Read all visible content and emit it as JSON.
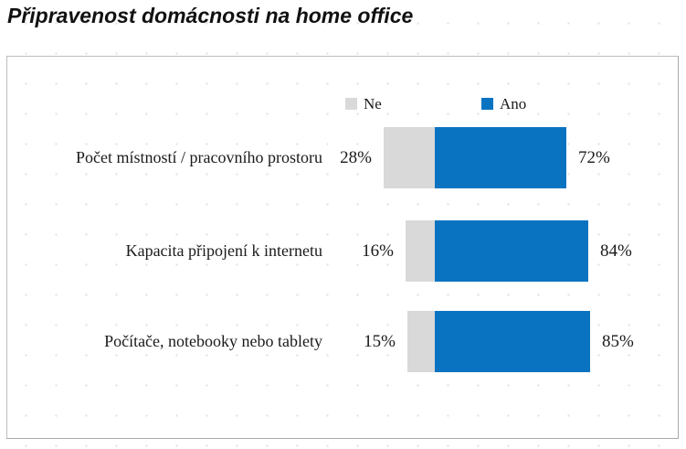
{
  "title": "Připravenost domácnosti na home office",
  "legend": {
    "ne": "Ne",
    "ano": "Ano"
  },
  "colors": {
    "ne": "#d9d9d9",
    "ano": "#0a73c1",
    "frame_border": "#b0b0b0",
    "text": "#1a1a1a"
  },
  "chart_data": {
    "type": "bar",
    "orientation": "horizontal-stacked-diverging",
    "title": "Připravenost domácnosti na home office",
    "categories": [
      "Počet místností / pracovního prostoru",
      "Kapacita připojení k internetu",
      "Počítače, notebooky nebo tablety"
    ],
    "series": [
      {
        "name": "Ne",
        "color": "#d9d9d9",
        "values": [
          28,
          16,
          15
        ]
      },
      {
        "name": "Ano",
        "color": "#0a73c1",
        "values": [
          72,
          84,
          85
        ]
      }
    ],
    "unit": "%",
    "value_labels": "outside-ends",
    "legend_position": "top-center",
    "grid": "faint-dots",
    "xlabel": "",
    "ylabel": ""
  },
  "rows": [
    {
      "category": "Počet místností / pracovního prostoru",
      "ne": 28,
      "ano": 72,
      "ne_label": "28%",
      "ano_label": "72%"
    },
    {
      "category": "Kapacita připojení k internetu",
      "ne": 16,
      "ano": 84,
      "ne_label": "16%",
      "ano_label": "84%"
    },
    {
      "category": "Počítače, notebooky nebo tablety",
      "ne": 15,
      "ano": 85,
      "ne_label": "15%",
      "ano_label": "85%"
    }
  ]
}
